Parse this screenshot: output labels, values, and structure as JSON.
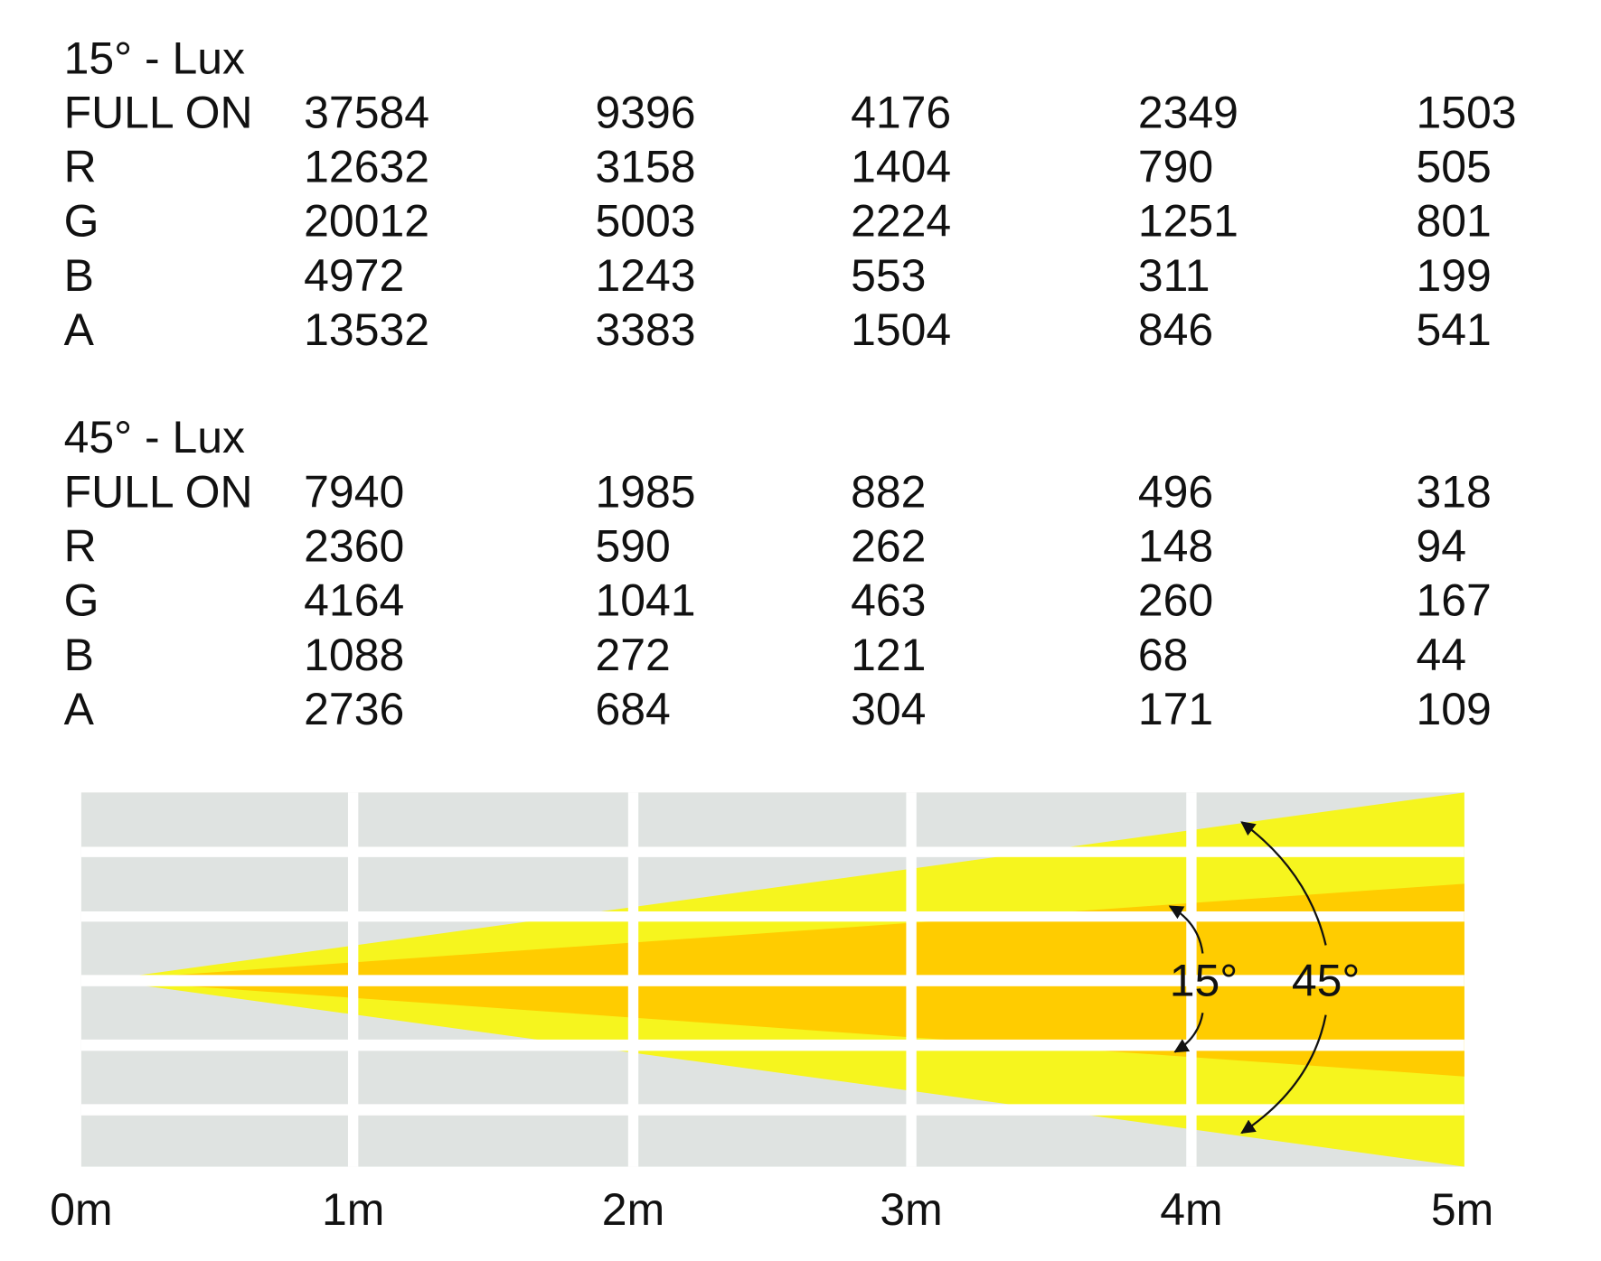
{
  "tables": [
    {
      "title": "15° - Lux",
      "rows": [
        {
          "label": "FULL ON",
          "values": [
            37584,
            9396,
            4176,
            2349,
            1503
          ]
        },
        {
          "label": "R",
          "values": [
            12632,
            3158,
            1404,
            790,
            505
          ]
        },
        {
          "label": "G",
          "values": [
            20012,
            5003,
            2224,
            1251,
            801
          ]
        },
        {
          "label": "B",
          "values": [
            4972,
            1243,
            553,
            311,
            199
          ]
        },
        {
          "label": "A",
          "values": [
            13532,
            3383,
            1504,
            846,
            541
          ]
        }
      ]
    },
    {
      "title": "45° - Lux",
      "rows": [
        {
          "label": "FULL ON",
          "values": [
            7940,
            1985,
            882,
            496,
            318
          ]
        },
        {
          "label": "R",
          "values": [
            2360,
            590,
            262,
            148,
            94
          ]
        },
        {
          "label": "G",
          "values": [
            4164,
            1041,
            463,
            260,
            167
          ]
        },
        {
          "label": "B",
          "values": [
            1088,
            272,
            121,
            68,
            44
          ]
        },
        {
          "label": "A",
          "values": [
            2736,
            684,
            304,
            171,
            109
          ]
        }
      ]
    }
  ],
  "diagram": {
    "distances": [
      "0m",
      "1m",
      "2m",
      "3m",
      "4m",
      "5m"
    ],
    "angles": [
      "15°",
      "45°"
    ]
  }
}
